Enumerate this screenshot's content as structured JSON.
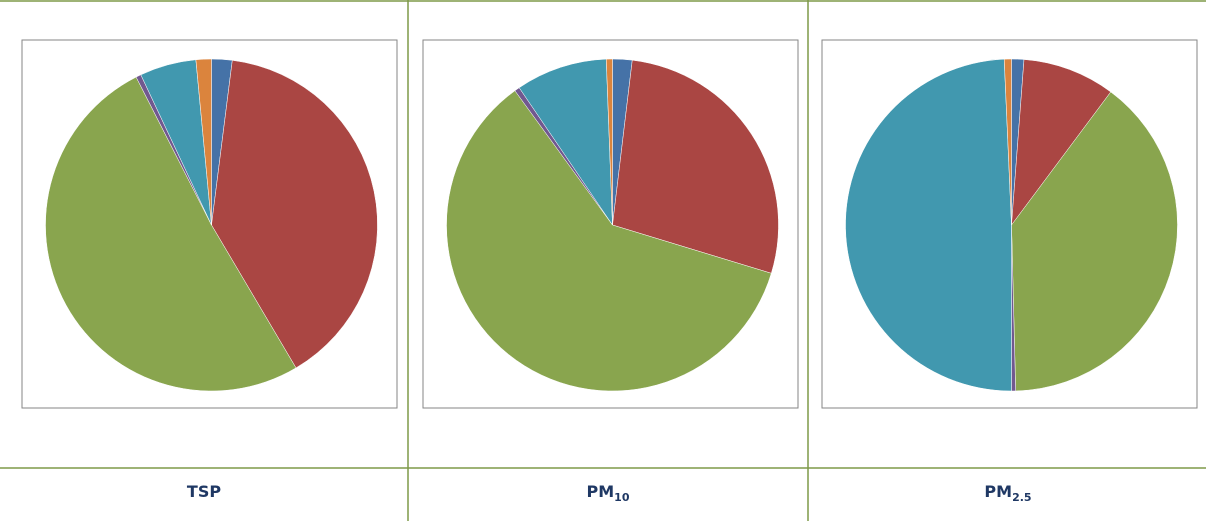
{
  "chart_data": [
    {
      "type": "pie",
      "values": [
        2,
        39.5,
        51,
        0.5,
        5.5,
        1.5
      ],
      "colors": [
        "#4572a7",
        "#aa4643",
        "#89a54e",
        "#71588f",
        "#4198af",
        "#db843d"
      ]
    },
    {
      "type": "pie",
      "values": [
        1.9,
        27.8,
        60.3,
        0.5,
        8.9,
        0.6
      ],
      "colors": [
        "#4572a7",
        "#aa4643",
        "#89a54e",
        "#71588f",
        "#4198af",
        "#db843d"
      ]
    },
    {
      "type": "pie",
      "values": [
        1.2,
        9,
        39.4,
        0.4,
        49.3,
        0.7
      ],
      "colors": [
        "#4572a7",
        "#aa4643",
        "#89a54e",
        "#71588f",
        "#4198af",
        "#db843d"
      ]
    }
  ],
  "table": {
    "labels": [
      {
        "text": "TSP"
      },
      {
        "text": "PM",
        "sub": "10"
      },
      {
        "text": "PM",
        "sub": "2.5"
      }
    ]
  }
}
